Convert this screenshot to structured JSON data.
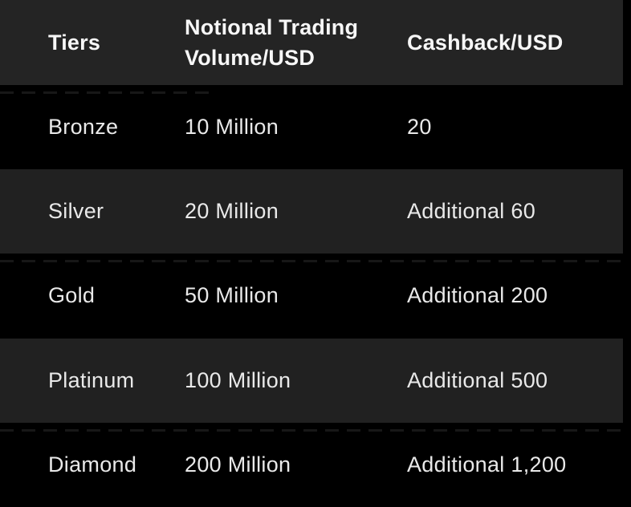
{
  "table": {
    "columns": [
      "Tiers",
      "Notional Trading Volume/USD",
      "Cashback/USD"
    ],
    "rows": [
      {
        "tier": "Bronze",
        "volume": "10 Million",
        "cashback": "20"
      },
      {
        "tier": "Silver",
        "volume": "20 Million",
        "cashback": "Additional 60"
      },
      {
        "tier": "Gold",
        "volume": "50 Million",
        "cashback": "Additional 200"
      },
      {
        "tier": "Platinum",
        "volume": "100 Million",
        "cashback": "Additional 500"
      },
      {
        "tier": "Diamond",
        "volume": "200 Million",
        "cashback": "Additional 1,200"
      }
    ],
    "colors": {
      "page_background": "#000000",
      "header_background": "#242424",
      "stripe_background": "#212121",
      "header_text": "#f7f7f7",
      "row_text": "#e9e9e9"
    }
  }
}
